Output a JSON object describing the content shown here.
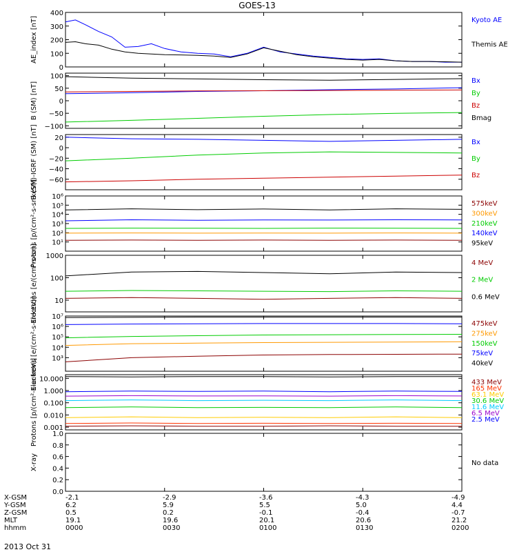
{
  "title": "GOES-13",
  "date_label": "2013 Oct 31",
  "footer": {
    "row_labels": [
      "X-GSM",
      "Y-GSM",
      "Z-GSM",
      "MLT",
      "hhmm"
    ],
    "columns": [
      [
        "-2.1",
        "6.2",
        "0.5",
        "19.1",
        "0000"
      ],
      [
        "-2.9",
        "5.9",
        "0.2",
        "19.6",
        "0030"
      ],
      [
        "-3.6",
        "5.5",
        "-0.1",
        "20.1",
        "0100"
      ],
      [
        "-4.3",
        "5.0",
        "-0.4",
        "20.6",
        "0130"
      ],
      [
        "-4.9",
        "4.4",
        "-0.7",
        "21.2",
        "0200"
      ]
    ]
  },
  "chart_data": [
    {
      "type": "line",
      "ylabel": "AE_index [nT]",
      "ylim": [
        0,
        400
      ],
      "yticks": [
        {
          "v": 0,
          "label": "0"
        },
        {
          "v": 100,
          "label": "100"
        },
        {
          "v": 200,
          "label": "200"
        },
        {
          "v": 300,
          "label": "300"
        },
        {
          "v": 400,
          "label": "400"
        }
      ],
      "xlim": [
        0,
        120
      ],
      "series": [
        {
          "name": "Kyoto AE",
          "color": "#0000ff",
          "x": [
            0,
            3,
            6,
            10,
            14,
            18,
            22,
            26,
            30,
            35,
            40,
            45,
            50,
            55,
            60,
            65,
            70,
            75,
            80,
            85,
            90,
            95,
            100,
            105,
            110,
            115,
            120
          ],
          "y": [
            330,
            345,
            310,
            260,
            220,
            145,
            150,
            170,
            135,
            110,
            100,
            95,
            75,
            100,
            145,
            110,
            95,
            80,
            70,
            60,
            55,
            60,
            45,
            40,
            40,
            35,
            35
          ]
        },
        {
          "name": "Themis AE",
          "color": "#000000",
          "x": [
            0,
            3,
            6,
            10,
            14,
            18,
            22,
            26,
            30,
            35,
            40,
            45,
            50,
            55,
            60,
            65,
            70,
            75,
            80,
            85,
            90,
            95,
            100,
            105,
            110,
            115,
            120
          ],
          "y": [
            180,
            185,
            170,
            160,
            130,
            110,
            100,
            95,
            90,
            88,
            85,
            80,
            70,
            95,
            140,
            115,
            90,
            75,
            65,
            55,
            50,
            55,
            45,
            40,
            40,
            38,
            35
          ]
        }
      ]
    },
    {
      "type": "line",
      "ylabel": "B (SM) [nT]",
      "ylim": [
        -110,
        110
      ],
      "yticks": [
        {
          "v": -100,
          "label": "−100"
        },
        {
          "v": -50,
          "label": "−50"
        },
        {
          "v": 0,
          "label": "0"
        },
        {
          "v": 50,
          "label": "50"
        },
        {
          "v": 100,
          "label": "100"
        }
      ],
      "xlim": [
        0,
        120
      ],
      "series": [
        {
          "name": "Bx",
          "color": "#0000ff",
          "x": [
            0,
            20,
            40,
            60,
            80,
            100,
            120
          ],
          "y": [
            28,
            32,
            37,
            40,
            44,
            47,
            52
          ]
        },
        {
          "name": "By",
          "color": "#00cc00",
          "x": [
            0,
            20,
            40,
            60,
            80,
            100,
            120
          ],
          "y": [
            -85,
            -78,
            -70,
            -62,
            -55,
            -50,
            -47
          ]
        },
        {
          "name": "Bz",
          "color": "#cc0000",
          "x": [
            0,
            20,
            40,
            60,
            80,
            100,
            120
          ],
          "y": [
            35,
            37,
            39,
            40,
            41,
            42,
            43
          ]
        },
        {
          "name": "Bmag",
          "color": "#000000",
          "x": [
            0,
            20,
            40,
            60,
            80,
            100,
            120
          ],
          "y": [
            96,
            90,
            87,
            84,
            82,
            85,
            88
          ]
        }
      ]
    },
    {
      "type": "line",
      "ylabel": "B (SM)-IGRF (SM) [nT]",
      "ylim": [
        -80,
        25
      ],
      "yticks": [
        {
          "v": -60,
          "label": "−60"
        },
        {
          "v": -40,
          "label": "−40"
        },
        {
          "v": -20,
          "label": "−20"
        },
        {
          "v": 0,
          "label": "0"
        },
        {
          "v": 20,
          "label": "20"
        }
      ],
      "xlim": [
        0,
        120
      ],
      "series": [
        {
          "name": "Bx",
          "color": "#0000ff",
          "x": [
            0,
            20,
            40,
            60,
            80,
            100,
            120
          ],
          "y": [
            20,
            17,
            16,
            14,
            12,
            14,
            16
          ]
        },
        {
          "name": "By",
          "color": "#00cc00",
          "x": [
            0,
            20,
            40,
            60,
            80,
            100,
            120
          ],
          "y": [
            -25,
            -20,
            -14,
            -10,
            -8,
            -9,
            -10
          ]
        },
        {
          "name": "Bz",
          "color": "#cc0000",
          "x": [
            0,
            20,
            40,
            60,
            80,
            100,
            120
          ],
          "y": [
            -65,
            -63,
            -60,
            -58,
            -56,
            -54,
            -52
          ]
        }
      ]
    },
    {
      "type": "line",
      "ylabel": "Protons [p/(cm²-s-sr-keV)]",
      "yscale": "log",
      "ylim": [
        1,
        1000000
      ],
      "yticks": [
        {
          "v": 10,
          "label": "10¹"
        },
        {
          "v": 100,
          "label": "10²"
        },
        {
          "v": 1000,
          "label": "10³"
        },
        {
          "v": 10000,
          "label": "10⁴"
        },
        {
          "v": 100000,
          "label": "10⁵"
        },
        {
          "v": 1000000,
          "label": "10⁶"
        }
      ],
      "xlim": [
        0,
        120
      ],
      "series": [
        {
          "name": "575keV",
          "color": "#8b0000",
          "x": [
            0,
            20,
            40,
            60,
            80,
            100,
            120
          ],
          "y": [
            15,
            16,
            15,
            16,
            15,
            16,
            15
          ]
        },
        {
          "name": "300keV",
          "color": "#ff9900",
          "x": [
            0,
            20,
            40,
            60,
            80,
            100,
            120
          ],
          "y": [
            90,
            95,
            90,
            92,
            90,
            95,
            90
          ]
        },
        {
          "name": "210keV",
          "color": "#00cc00",
          "x": [
            0,
            20,
            40,
            60,
            80,
            100,
            120
          ],
          "y": [
            300,
            320,
            310,
            300,
            320,
            310,
            300
          ]
        },
        {
          "name": "140keV",
          "color": "#0000ff",
          "x": [
            0,
            20,
            40,
            60,
            80,
            100,
            120
          ],
          "y": [
            2000,
            2600,
            2300,
            2500,
            2400,
            2600,
            2500
          ]
        },
        {
          "name": "95keV",
          "color": "#000000",
          "x": [
            0,
            20,
            40,
            60,
            80,
            100,
            120
          ],
          "y": [
            30000,
            40000,
            32000,
            38000,
            30000,
            40000,
            35000
          ]
        }
      ]
    },
    {
      "type": "line",
      "ylabel": "Electrons [e/(cm²-s-sr)]",
      "yscale": "log",
      "ylim": [
        3,
        1000
      ],
      "yticks": [
        {
          "v": 10,
          "label": "10"
        },
        {
          "v": 100,
          "label": "100"
        },
        {
          "v": 1000,
          "label": "1000"
        }
      ],
      "xlim": [
        0,
        120
      ],
      "series": [
        {
          "name": "4 MeV",
          "color": "#8b0000",
          "x": [
            0,
            20,
            40,
            60,
            80,
            100,
            120
          ],
          "y": [
            12,
            13,
            12,
            11,
            12,
            13,
            12
          ]
        },
        {
          "name": "2 MeV",
          "color": "#00cc00",
          "x": [
            0,
            20,
            40,
            60,
            80,
            100,
            120
          ],
          "y": [
            25,
            27,
            26,
            25,
            24,
            26,
            25
          ]
        },
        {
          "name": "0.6 MeV",
          "color": "#000000",
          "x": [
            0,
            20,
            40,
            60,
            80,
            100,
            120
          ],
          "y": [
            120,
            180,
            190,
            170,
            150,
            180,
            170
          ]
        }
      ]
    },
    {
      "type": "line",
      "ylabel": "Electrons [e/(cm²-s-sr-keV)]",
      "yscale": "log",
      "ylim": [
        50,
        10000000
      ],
      "yticks": [
        {
          "v": 1000,
          "label": "10³"
        },
        {
          "v": 10000,
          "label": "10⁴"
        },
        {
          "v": 100000,
          "label": "10⁵"
        },
        {
          "v": 1000000,
          "label": "10⁶"
        },
        {
          "v": 10000000,
          "label": "10⁷"
        }
      ],
      "xlim": [
        0,
        120
      ],
      "series": [
        {
          "name": "475keV",
          "color": "#8b0000",
          "x": [
            0,
            20,
            40,
            60,
            80,
            100,
            120
          ],
          "y": [
            400,
            1000,
            1400,
            1800,
            2000,
            2100,
            2200
          ]
        },
        {
          "name": "275keV",
          "color": "#ff9900",
          "x": [
            0,
            20,
            40,
            60,
            80,
            100,
            120
          ],
          "y": [
            15000,
            22000,
            25000,
            28000,
            30000,
            32000,
            34000
          ]
        },
        {
          "name": "150keV",
          "color": "#00cc00",
          "x": [
            0,
            20,
            40,
            60,
            80,
            100,
            120
          ],
          "y": [
            80000,
            110000,
            130000,
            150000,
            160000,
            170000,
            175000
          ]
        },
        {
          "name": "75keV",
          "color": "#0000ff",
          "x": [
            0,
            20,
            40,
            60,
            80,
            100,
            120
          ],
          "y": [
            1500000,
            1700000,
            1800000,
            1900000,
            1900000,
            1900000,
            1800000
          ]
        },
        {
          "name": "40keV",
          "color": "#000000",
          "x": [
            0,
            20,
            40,
            60,
            80,
            100,
            120
          ],
          "y": [
            7000000,
            7500000,
            8000000,
            8000000,
            8000000,
            8000000,
            8000000
          ]
        }
      ]
    },
    {
      "type": "line",
      "ylabel": "Protons [p/(cm²-s-sr-keV)]",
      "yscale": "log",
      "ylim": [
        0.0006,
        20
      ],
      "yticks": [
        {
          "v": 0.001,
          "label": "0.001"
        },
        {
          "v": 0.01,
          "label": "0.010"
        },
        {
          "v": 0.1,
          "label": "0.100"
        },
        {
          "v": 1,
          "label": "1.000"
        },
        {
          "v": 10,
          "label": "10.000"
        }
      ],
      "xlim": [
        0,
        120
      ],
      "series": [
        {
          "name": "433 MeV",
          "color": "#8b0000",
          "x": [
            0,
            20,
            40,
            60,
            80,
            100,
            120
          ],
          "y": [
            0.0012,
            0.0013,
            0.0012,
            0.0012,
            0.0013,
            0.0012,
            0.0012
          ]
        },
        {
          "name": "165 MeV",
          "color": "#ff3300",
          "x": [
            0,
            20,
            40,
            60,
            80,
            100,
            120
          ],
          "y": [
            0.002,
            0.0022,
            0.002,
            0.0021,
            0.002,
            0.0021,
            0.002
          ]
        },
        {
          "name": "63.1 MeV",
          "color": "#ffcc00",
          "x": [
            0,
            20,
            40,
            60,
            80,
            100,
            120
          ],
          "y": [
            0.006,
            0.007,
            0.006,
            0.0065,
            0.006,
            0.007,
            0.006
          ]
        },
        {
          "name": "30.6 MeV",
          "color": "#00cc00",
          "x": [
            0,
            20,
            40,
            60,
            80,
            100,
            120
          ],
          "y": [
            0.04,
            0.045,
            0.04,
            0.042,
            0.04,
            0.045,
            0.04
          ]
        },
        {
          "name": "11.6 MeV",
          "color": "#00ccff",
          "x": [
            0,
            20,
            40,
            60,
            80,
            100,
            120
          ],
          "y": [
            0.15,
            0.17,
            0.15,
            0.16,
            0.15,
            0.17,
            0.15
          ]
        },
        {
          "name": "6.5 MeV",
          "color": "#9900cc",
          "x": [
            0,
            20,
            40,
            60,
            80,
            100,
            120
          ],
          "y": [
            0.35,
            0.38,
            0.36,
            0.37,
            0.35,
            0.38,
            0.36
          ]
        },
        {
          "name": "2.5 MeV",
          "color": "#0000ff",
          "x": [
            0,
            20,
            40,
            60,
            80,
            100,
            120
          ],
          "y": [
            0.8,
            0.9,
            0.85,
            0.9,
            0.8,
            0.9,
            0.85
          ]
        },
        {
          "name": "",
          "color": "#000000",
          "x": [
            0,
            20,
            40,
            60,
            80,
            100,
            120
          ],
          "y": [
            14,
            13,
            14,
            14,
            13,
            14,
            14
          ]
        }
      ]
    },
    {
      "type": "line",
      "ylabel": "X-ray",
      "ylim": [
        0,
        1
      ],
      "yticks": [
        {
          "v": 0,
          "label": "0.0"
        },
        {
          "v": 0.2,
          "label": "0.2"
        },
        {
          "v": 0.4,
          "label": "0.4"
        },
        {
          "v": 0.6,
          "label": "0.6"
        },
        {
          "v": 0.8,
          "label": "0.8"
        },
        {
          "v": 1,
          "label": "1.0"
        }
      ],
      "xlim": [
        0,
        120
      ],
      "note": "No data",
      "series": []
    }
  ]
}
